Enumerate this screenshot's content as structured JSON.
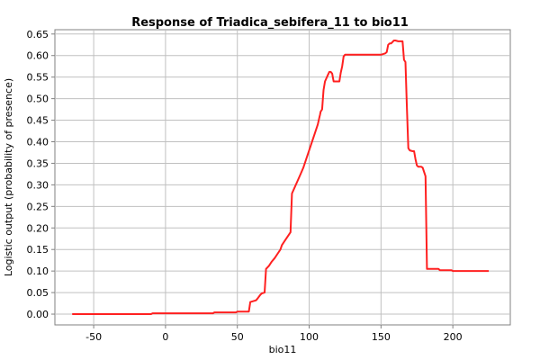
{
  "chart_data": {
    "type": "line",
    "title": "Response of Triadica_sebifera_11 to bio11",
    "xlabel": "bio11",
    "ylabel": "Logistic output (probability of presence)",
    "xlim": [
      -77,
      240
    ],
    "ylim": [
      -0.025,
      0.66
    ],
    "xticks": [
      -50,
      0,
      50,
      100,
      150,
      200
    ],
    "yticks": [
      0.0,
      0.05,
      0.1,
      0.15,
      0.2,
      0.25,
      0.3,
      0.35,
      0.4,
      0.45,
      0.5,
      0.55,
      0.6,
      0.65
    ],
    "xtick_labels": [
      "-50",
      "0",
      "50",
      "100",
      "150",
      "200"
    ],
    "ytick_labels": [
      "0.00",
      "0.05",
      "0.10",
      "0.15",
      "0.20",
      "0.25",
      "0.30",
      "0.35",
      "0.40",
      "0.45",
      "0.50",
      "0.55",
      "0.60",
      "0.65"
    ],
    "grid": true,
    "color": "#ff2020",
    "series": [
      {
        "x": [
          -65,
          -10,
          -9,
          33,
          34,
          49,
          50,
          58,
          59,
          63,
          64,
          66,
          67,
          69,
          70,
          72,
          74,
          76,
          78,
          80,
          81,
          83,
          85,
          87,
          88,
          90,
          92,
          94,
          96,
          98,
          100,
          102,
          104,
          106,
          107,
          107.5,
          108,
          109,
          110,
          111,
          113,
          114,
          115,
          116,
          117,
          118,
          119,
          120,
          121,
          122,
          123,
          124,
          125,
          135,
          145,
          150,
          153,
          154,
          155,
          156,
          157,
          159,
          160,
          162,
          164,
          165,
          166,
          167,
          168,
          169,
          170,
          172,
          173,
          174,
          175,
          176,
          178,
          179,
          180,
          181,
          182,
          190,
          191,
          199,
          200,
          225
        ],
        "y": [
          0.0,
          0.0,
          0.002,
          0.002,
          0.004,
          0.004,
          0.006,
          0.006,
          0.028,
          0.032,
          0.036,
          0.045,
          0.048,
          0.05,
          0.105,
          0.112,
          0.122,
          0.13,
          0.14,
          0.15,
          0.16,
          0.17,
          0.18,
          0.19,
          0.28,
          0.295,
          0.31,
          0.325,
          0.34,
          0.36,
          0.38,
          0.4,
          0.42,
          0.44,
          0.455,
          0.462,
          0.47,
          0.475,
          0.52,
          0.54,
          0.555,
          0.562,
          0.562,
          0.558,
          0.54,
          0.54,
          0.54,
          0.54,
          0.54,
          0.56,
          0.575,
          0.598,
          0.602,
          0.602,
          0.602,
          0.602,
          0.605,
          0.608,
          0.625,
          0.628,
          0.628,
          0.635,
          0.635,
          0.633,
          0.633,
          0.633,
          0.59,
          0.585,
          0.48,
          0.385,
          0.38,
          0.378,
          0.378,
          0.36,
          0.345,
          0.342,
          0.342,
          0.34,
          0.33,
          0.32,
          0.105,
          0.105,
          0.102,
          0.102,
          0.1,
          0.1
        ]
      }
    ]
  }
}
